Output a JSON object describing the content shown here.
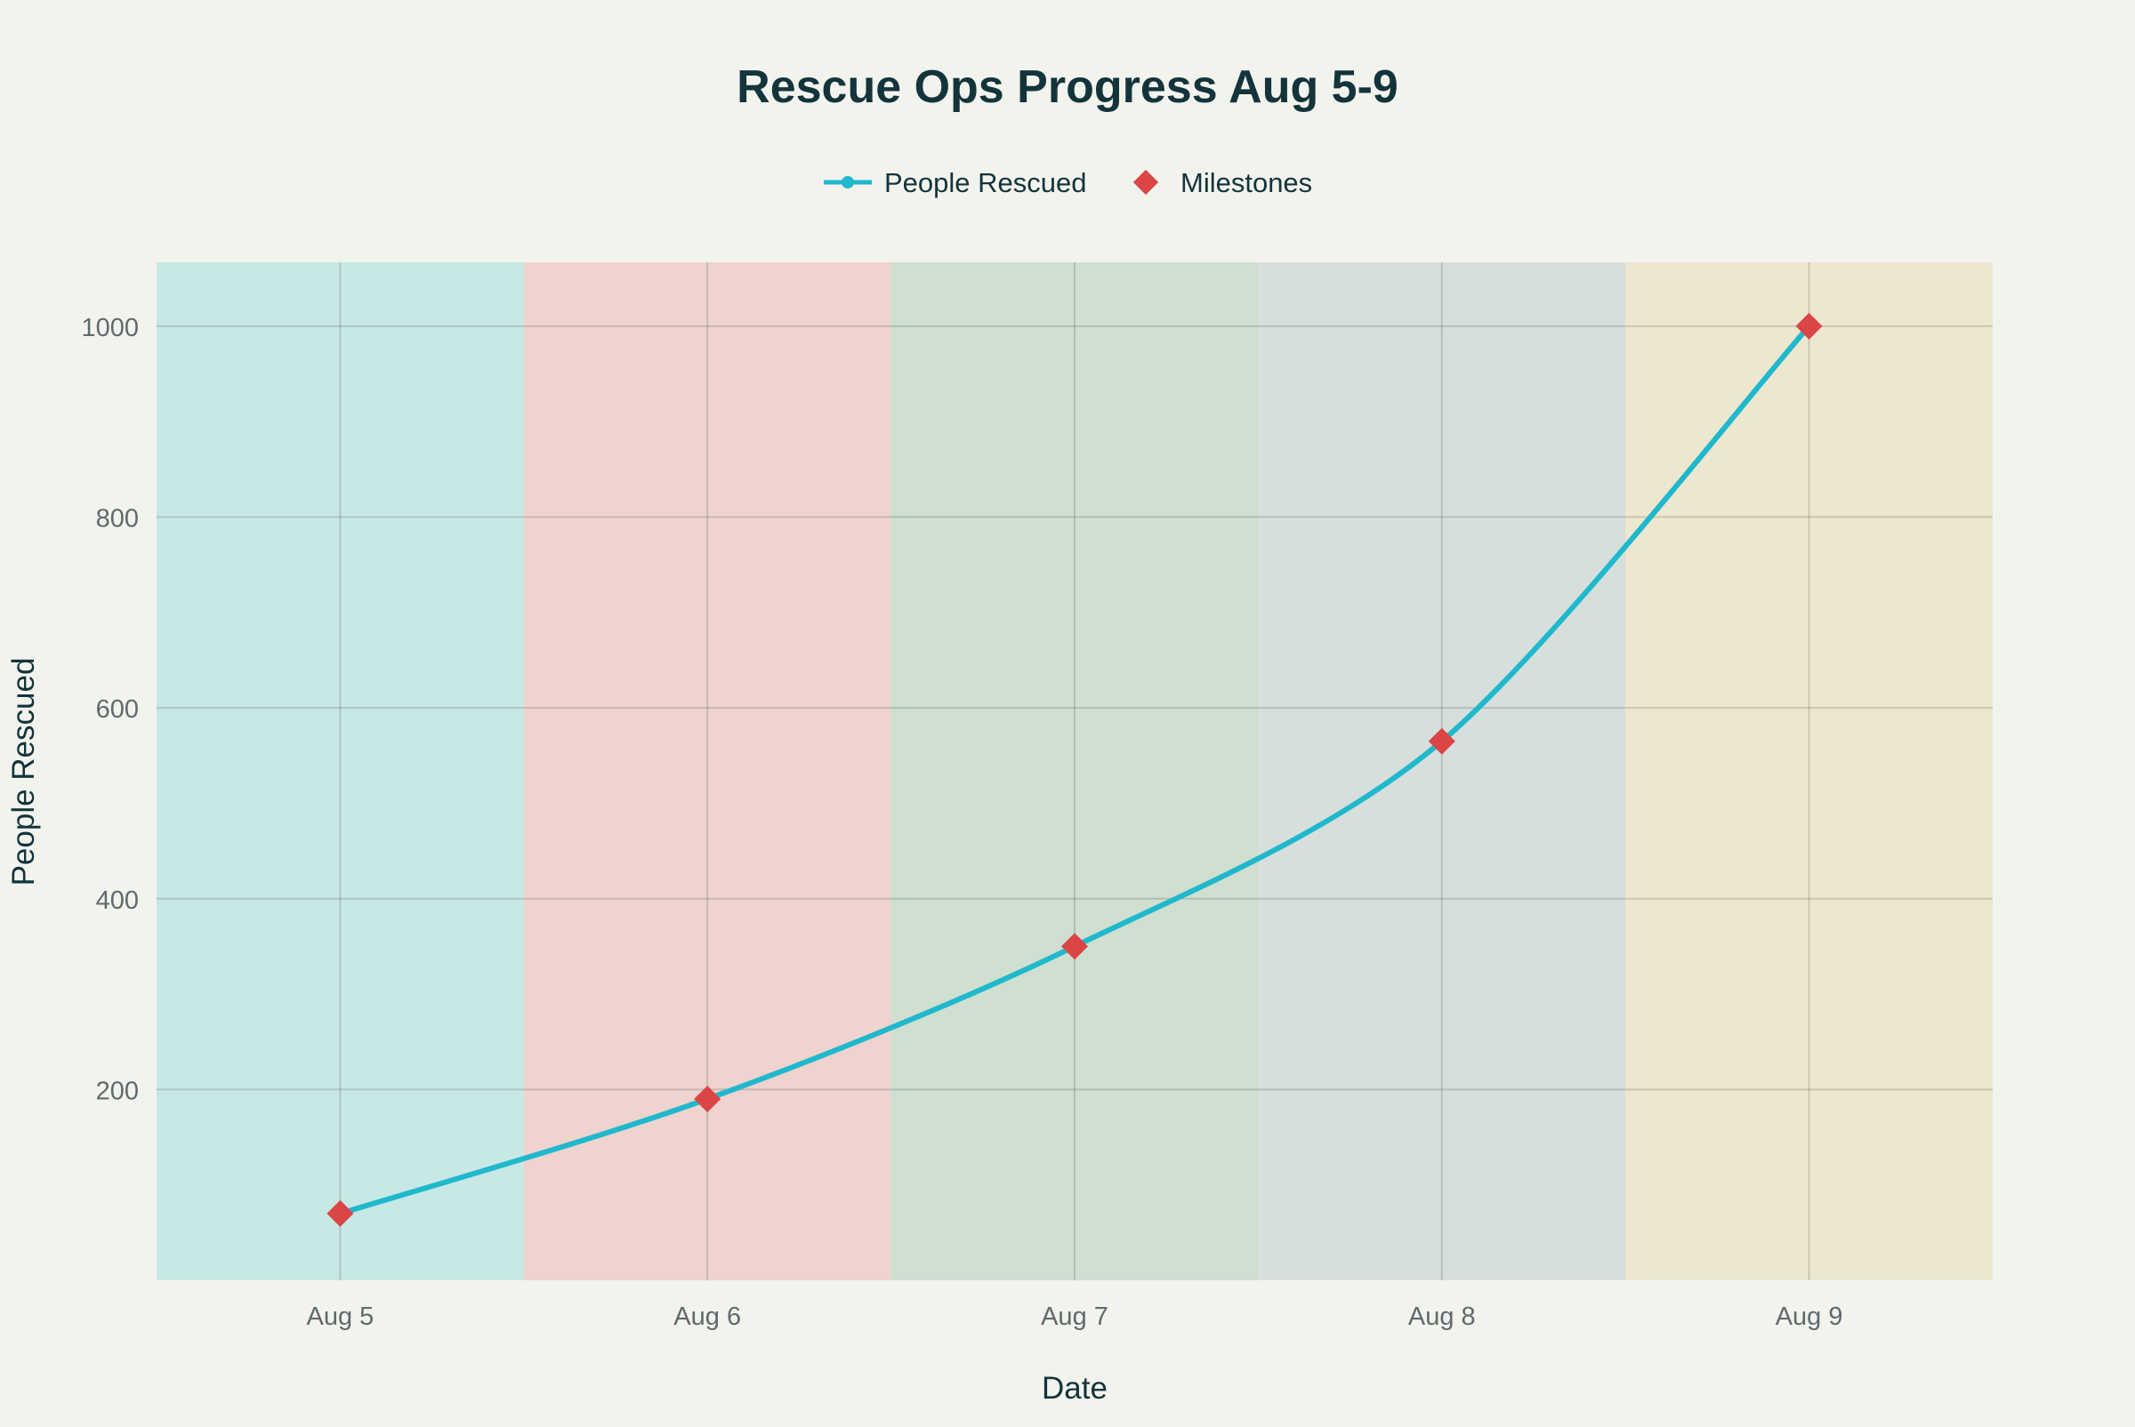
{
  "chart_data": {
    "type": "line",
    "title": "Rescue Ops Progress Aug 5-9",
    "xlabel": "Date",
    "ylabel": "People Rescued",
    "categories": [
      "Aug 5",
      "Aug 6",
      "Aug 7",
      "Aug 8",
      "Aug 9"
    ],
    "series": [
      {
        "name": "People Rescued",
        "values": [
          70,
          190,
          350,
          565,
          1000
        ],
        "color": "#1fb8cd",
        "style": "spline"
      },
      {
        "name": "Milestones",
        "values": [
          70,
          190,
          350,
          565,
          1000
        ],
        "color": "#db4545",
        "style": "diamond-markers"
      }
    ],
    "band_colors": [
      "#c8e8e6",
      "#eed3cf",
      "#cfdfd0",
      "#d6dfdc",
      "#ede7d0"
    ],
    "yticks": [
      200,
      400,
      600,
      800,
      1000
    ],
    "ylim": [
      0,
      1067
    ],
    "grid": true,
    "legend": "top-center"
  }
}
